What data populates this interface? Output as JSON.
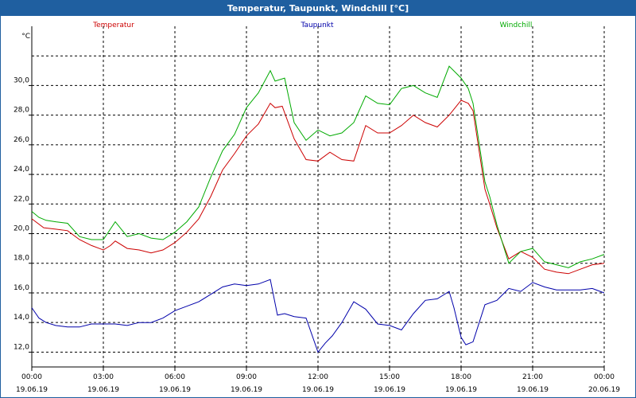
{
  "window": {
    "title": "Temperatur, Taupunkt, Windchill [°C]"
  },
  "chart_data": {
    "type": "line",
    "title": "Temperatur, Taupunkt, Windchill [°C]",
    "ylabel": "°C",
    "xlabel": "",
    "ylim": [
      11.0,
      34.0
    ],
    "xlim_hours": [
      0,
      24
    ],
    "grid": true,
    "y_ticks": [
      "12,0",
      "14,0",
      "16,0",
      "18,0",
      "20,0",
      "22,0",
      "24,0",
      "26,0",
      "28,0",
      "30,0"
    ],
    "y_tick_values": [
      12,
      14,
      16,
      18,
      20,
      22,
      24,
      26,
      28,
      30
    ],
    "x_ticks": [
      {
        "hour": 0,
        "time": "00:00",
        "date": "19.06.19"
      },
      {
        "hour": 3,
        "time": "03:00",
        "date": "19.06.19"
      },
      {
        "hour": 6,
        "time": "06:00",
        "date": "19.06.19"
      },
      {
        "hour": 9,
        "time": "09:00",
        "date": "19.06.19"
      },
      {
        "hour": 12,
        "time": "12:00",
        "date": "19.06.19"
      },
      {
        "hour": 15,
        "time": "15:00",
        "date": "19.06.19"
      },
      {
        "hour": 18,
        "time": "18:00",
        "date": "19.06.19"
      },
      {
        "hour": 21,
        "time": "21:00",
        "date": "19.06.19"
      },
      {
        "hour": 24,
        "time": "00:00",
        "date": "20.06.19"
      }
    ],
    "series": [
      {
        "name": "Temperatur",
        "color": "#cc0000",
        "legend": "left",
        "x": [
          0,
          0.5,
          1,
          1.5,
          2,
          2.5,
          3,
          3.3,
          3.5,
          4,
          4.5,
          5,
          5.5,
          6,
          6.5,
          7,
          7.5,
          8,
          8.5,
          9,
          9.5,
          10,
          10.2,
          10.5,
          11,
          11.5,
          12,
          12.5,
          13,
          13.5,
          14,
          14.5,
          15,
          15.5,
          16,
          16.5,
          17,
          17.5,
          18,
          18.3,
          18.5,
          19,
          19.2,
          19.5,
          20,
          20.5,
          21,
          21.5,
          22,
          22.5,
          23,
          23.5,
          24
        ],
        "values": [
          21.0,
          20.4,
          20.3,
          20.2,
          19.6,
          19.2,
          18.9,
          19.2,
          19.5,
          19.0,
          18.9,
          18.7,
          18.9,
          19.4,
          20.1,
          21.0,
          22.5,
          24.3,
          25.4,
          26.6,
          27.4,
          28.8,
          28.5,
          28.6,
          26.4,
          25.0,
          24.9,
          25.5,
          25.0,
          24.9,
          27.3,
          26.8,
          26.8,
          27.3,
          28.0,
          27.5,
          27.2,
          28.0,
          29.0,
          28.8,
          28.3,
          23.0,
          22.0,
          20.4,
          18.3,
          18.8,
          18.4,
          17.6,
          17.4,
          17.3,
          17.6,
          17.9,
          18.0
        ]
      },
      {
        "name": "Taupunkt",
        "color": "#0000aa",
        "legend": "center",
        "x": [
          0,
          0.3,
          0.6,
          1,
          1.5,
          2,
          2.5,
          3,
          3.5,
          4,
          4.5,
          5,
          5.5,
          6,
          6.5,
          7,
          7.5,
          8,
          8.5,
          9,
          9.5,
          10,
          10.3,
          10.6,
          11,
          11.5,
          12,
          12.3,
          12.6,
          13,
          13.5,
          14,
          14.5,
          15,
          15.5,
          16,
          16.5,
          17,
          17.5,
          17.7,
          18,
          18.2,
          18.5,
          19,
          19.5,
          20,
          20.5,
          21,
          21.5,
          22,
          22.5,
          23,
          23.5,
          24
        ],
        "values": [
          15.0,
          14.3,
          14.0,
          13.8,
          13.7,
          13.7,
          13.9,
          13.9,
          13.9,
          13.8,
          14.0,
          14.0,
          14.3,
          14.8,
          15.1,
          15.4,
          15.9,
          16.4,
          16.6,
          16.5,
          16.6,
          16.9,
          14.5,
          14.6,
          14.4,
          14.3,
          12.0,
          12.6,
          13.1,
          14.0,
          15.4,
          14.9,
          13.9,
          13.8,
          13.5,
          14.6,
          15.5,
          15.6,
          16.1,
          15.0,
          13.0,
          12.5,
          12.7,
          15.2,
          15.5,
          16.3,
          16.1,
          16.7,
          16.4,
          16.2,
          16.2,
          16.2,
          16.3,
          16.0
        ]
      },
      {
        "name": "Windchill",
        "color": "#00aa00",
        "legend": "right",
        "x": [
          0,
          0.3,
          0.6,
          1,
          1.5,
          2,
          2.5,
          3,
          3.5,
          4,
          4.5,
          5,
          5.5,
          6,
          6.5,
          7,
          7.5,
          8,
          8.5,
          9,
          9.5,
          10,
          10.2,
          10.6,
          11,
          11.5,
          12,
          12.5,
          13,
          13.5,
          14,
          14.5,
          15,
          15.5,
          16,
          16.5,
          17,
          17.5,
          18,
          18.3,
          18.5,
          19,
          19.2,
          19.5,
          20,
          20.5,
          21,
          21.5,
          22,
          22.5,
          23,
          23.5,
          24
        ],
        "values": [
          21.5,
          21.1,
          20.9,
          20.8,
          20.7,
          19.8,
          19.6,
          19.6,
          20.8,
          19.8,
          20.0,
          19.7,
          19.6,
          20.1,
          20.8,
          21.8,
          23.8,
          25.6,
          26.7,
          28.5,
          29.5,
          31.0,
          30.3,
          30.5,
          27.5,
          26.3,
          27.0,
          26.6,
          26.8,
          27.5,
          29.3,
          28.8,
          28.7,
          29.8,
          30.0,
          29.5,
          29.2,
          31.3,
          30.5,
          29.8,
          28.8,
          23.5,
          22.5,
          20.6,
          18.0,
          18.8,
          19.0,
          18.1,
          17.9,
          17.7,
          18.1,
          18.3,
          18.6
        ]
      }
    ]
  }
}
